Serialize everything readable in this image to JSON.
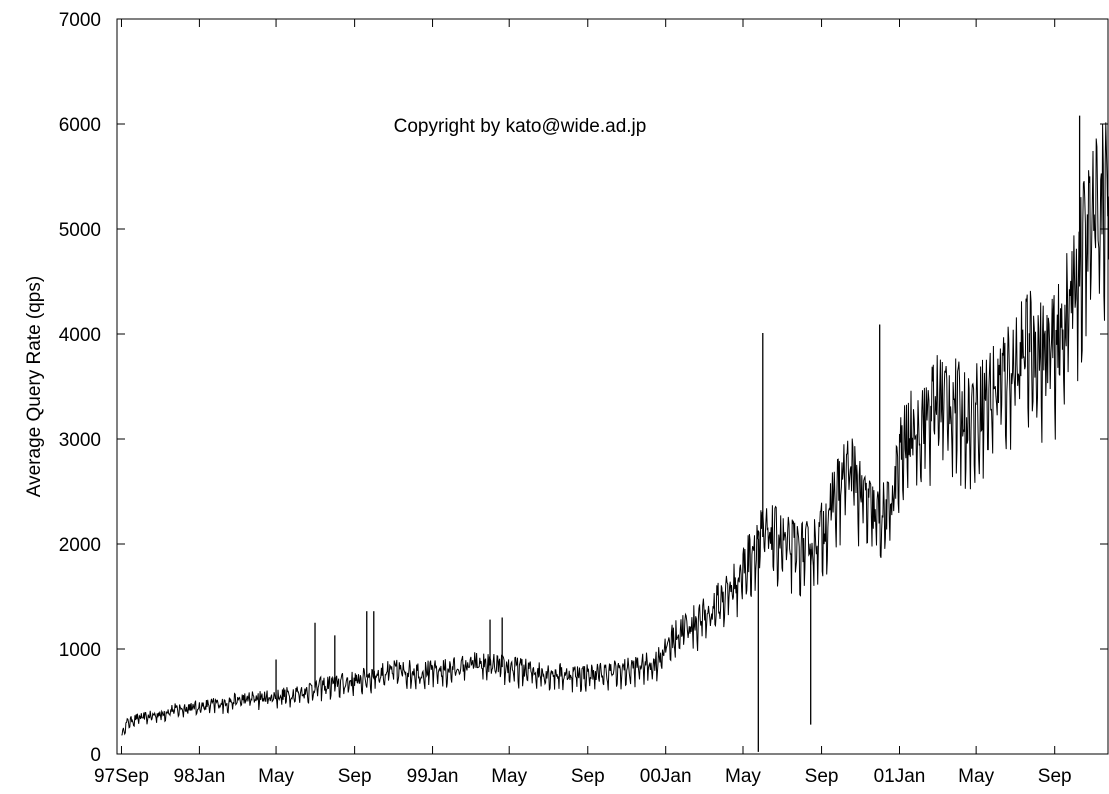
{
  "chart_data": {
    "type": "line",
    "title": "",
    "xlabel": "",
    "ylabel": "Average Query Rate (qps)",
    "annotation": "Copyright by kato@wide.ad.jp",
    "x_ticks": [
      {
        "date": "1997-09-01",
        "label": "97Sep"
      },
      {
        "date": "1998-01-01",
        "label": "98Jan"
      },
      {
        "date": "1998-05-01",
        "label": "May"
      },
      {
        "date": "1998-09-01",
        "label": "Sep"
      },
      {
        "date": "1999-01-01",
        "label": "99Jan"
      },
      {
        "date": "1999-05-01",
        "label": "May"
      },
      {
        "date": "1999-09-01",
        "label": "Sep"
      },
      {
        "date": "2000-01-01",
        "label": "00Jan"
      },
      {
        "date": "2000-05-01",
        "label": "May"
      },
      {
        "date": "2000-09-01",
        "label": "Sep"
      },
      {
        "date": "2001-01-01",
        "label": "01Jan"
      },
      {
        "date": "2001-05-01",
        "label": "May"
      },
      {
        "date": "2001-09-01",
        "label": "Sep"
      }
    ],
    "y_ticks": [
      0,
      1000,
      2000,
      3000,
      4000,
      5000,
      6000,
      7000
    ],
    "ylim": [
      0,
      7000
    ],
    "xlim": [
      "1997-08-25",
      "2001-11-25"
    ],
    "grid": false,
    "series": [
      {
        "color": "#000000",
        "points": [
          [
            "1997-09-01",
            180
          ],
          [
            "1997-09-10",
            300
          ],
          [
            "1997-09-25",
            340
          ],
          [
            "1997-10-15",
            360
          ],
          [
            "1997-11-01",
            380
          ],
          [
            "1997-11-20",
            420
          ],
          [
            "1997-12-10",
            440
          ],
          [
            "1998-01-01",
            450
          ],
          [
            "1998-01-20",
            470
          ],
          [
            "1998-02-10",
            490
          ],
          [
            "1998-03-01",
            510
          ],
          [
            "1998-03-25",
            530
          ],
          [
            "1998-04-15",
            540
          ],
          [
            "1998-05-05",
            550
          ],
          [
            "1998-05-25",
            570
          ],
          [
            "1998-06-15",
            600
          ],
          [
            "1998-07-05",
            640
          ],
          [
            "1998-07-25",
            660
          ],
          [
            "1998-08-15",
            680
          ],
          [
            "1998-09-05",
            700
          ],
          [
            "1998-09-25",
            740
          ],
          [
            "1998-10-15",
            770
          ],
          [
            "1998-11-05",
            790
          ],
          [
            "1998-11-25",
            790
          ],
          [
            "1998-12-15",
            780
          ],
          [
            "1999-01-05",
            790
          ],
          [
            "1999-01-25",
            800
          ],
          [
            "1999-02-15",
            830
          ],
          [
            "1999-03-05",
            860
          ],
          [
            "1999-03-25",
            850
          ],
          [
            "1999-04-15",
            830
          ],
          [
            "1999-05-05",
            820
          ],
          [
            "1999-05-25",
            800
          ],
          [
            "1999-06-15",
            780
          ],
          [
            "1999-07-05",
            770
          ],
          [
            "1999-07-25",
            760
          ],
          [
            "1999-08-15",
            760
          ],
          [
            "1999-09-05",
            760
          ],
          [
            "1999-09-25",
            770
          ],
          [
            "1999-10-15",
            790
          ],
          [
            "1999-11-05",
            810
          ],
          [
            "1999-11-25",
            840
          ],
          [
            "1999-12-15",
            860
          ],
          [
            "2000-01-05",
            1050
          ],
          [
            "2000-01-25",
            1180
          ],
          [
            "2000-02-15",
            1250
          ],
          [
            "2000-03-05",
            1320
          ],
          [
            "2000-03-25",
            1450
          ],
          [
            "2000-04-15",
            1600
          ],
          [
            "2000-05-05",
            1800
          ],
          [
            "2000-05-25",
            2050
          ],
          [
            "2000-06-15",
            2100
          ],
          [
            "2000-07-05",
            2000
          ],
          [
            "2000-07-25",
            1950
          ],
          [
            "2000-08-15",
            1950
          ],
          [
            "2000-09-05",
            2150
          ],
          [
            "2000-09-25",
            2500
          ],
          [
            "2000-10-15",
            2750
          ],
          [
            "2000-11-05",
            2450
          ],
          [
            "2000-11-25",
            2250
          ],
          [
            "2000-12-15",
            2300
          ],
          [
            "2001-01-05",
            2900
          ],
          [
            "2001-01-25",
            3100
          ],
          [
            "2001-02-15",
            3250
          ],
          [
            "2001-03-05",
            3400
          ],
          [
            "2001-03-25",
            3350
          ],
          [
            "2001-04-15",
            3200
          ],
          [
            "2001-05-05",
            3300
          ],
          [
            "2001-05-25",
            3450
          ],
          [
            "2001-06-15",
            3600
          ],
          [
            "2001-07-05",
            3800
          ],
          [
            "2001-07-25",
            3900
          ],
          [
            "2001-08-15",
            3800
          ],
          [
            "2001-09-05",
            3900
          ],
          [
            "2001-09-25",
            4300
          ],
          [
            "2001-10-15",
            4800
          ],
          [
            "2001-11-05",
            5200
          ],
          [
            "2001-11-25",
            5400
          ]
        ],
        "spikes": [
          [
            "1998-05-01",
            900
          ],
          [
            "1998-07-01",
            1250
          ],
          [
            "1998-08-01",
            1130
          ],
          [
            "1998-09-20",
            1360
          ],
          [
            "1998-10-01",
            1360
          ],
          [
            "1999-04-01",
            1280
          ],
          [
            "1999-04-20",
            1300
          ],
          [
            "2000-05-25",
            20
          ],
          [
            "2000-06-01",
            4010
          ],
          [
            "2000-08-15",
            280
          ],
          [
            "2000-12-01",
            4090
          ],
          [
            "2001-10-10",
            6080
          ]
        ]
      }
    ]
  }
}
